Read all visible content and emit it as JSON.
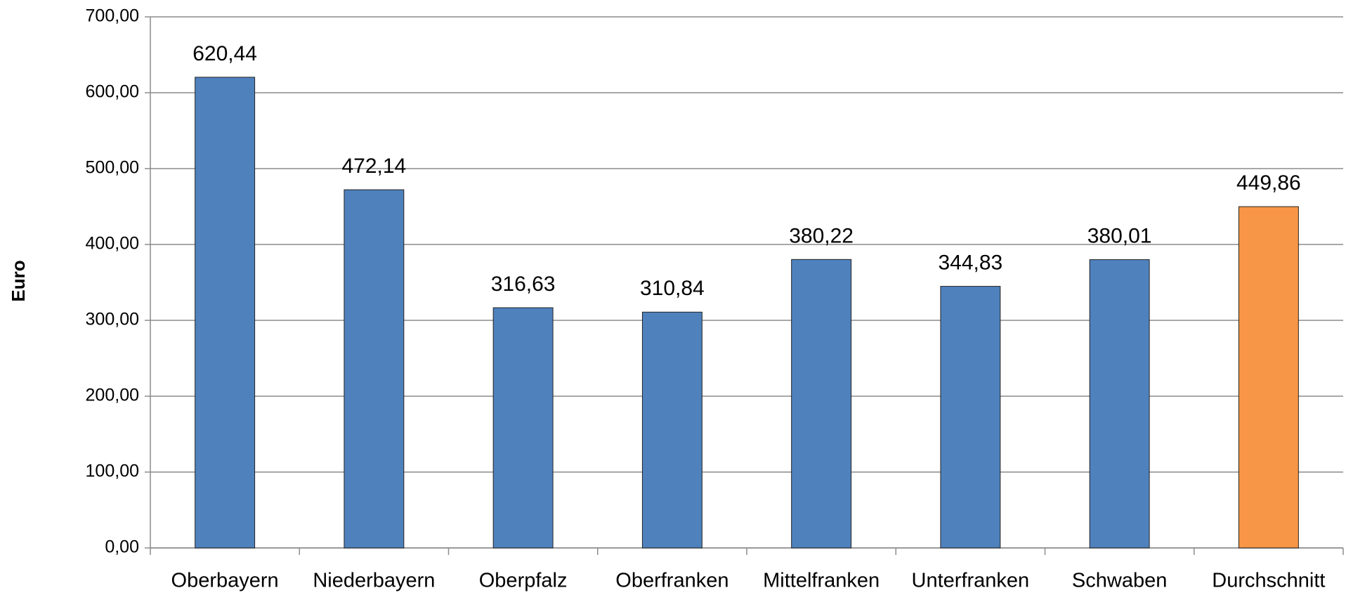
{
  "chart_data": {
    "type": "bar",
    "y_label": "Euro",
    "categories": [
      "Oberbayern",
      "Niederbayern",
      "Oberpfalz",
      "Oberfranken",
      "Mittelfranken",
      "Unterfranken",
      "Schwaben",
      "Durchschnitt"
    ],
    "values": [
      620.44,
      472.14,
      316.63,
      310.84,
      380.22,
      344.83,
      380.01,
      449.86
    ],
    "value_labels": [
      "620,44",
      "472,14",
      "316,63",
      "310,84",
      "380,22",
      "344,83",
      "380,01",
      "449,86"
    ],
    "colors": [
      "#4f81bd",
      "#4f81bd",
      "#4f81bd",
      "#4f81bd",
      "#4f81bd",
      "#4f81bd",
      "#4f81bd",
      "#f79646"
    ],
    "ylim": [
      0,
      700
    ],
    "yticks": [
      {
        "value": 0,
        "label": "0,00"
      },
      {
        "value": 100,
        "label": "100,00"
      },
      {
        "value": 200,
        "label": "200,00"
      },
      {
        "value": 300,
        "label": "300,00"
      },
      {
        "value": 400,
        "label": "400,00"
      },
      {
        "value": 500,
        "label": "500,00"
      },
      {
        "value": 600,
        "label": "600,00"
      },
      {
        "value": 700,
        "label": "700,00"
      }
    ],
    "grid": true
  }
}
